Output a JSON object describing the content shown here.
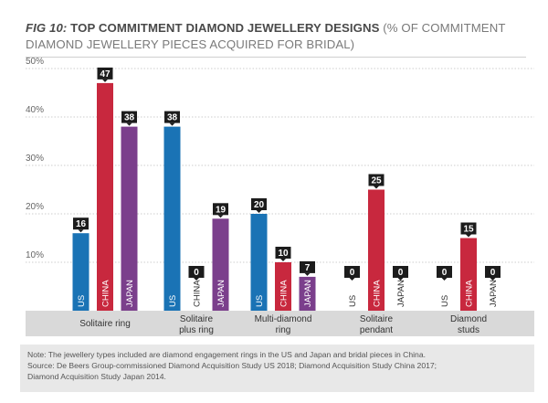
{
  "title": {
    "fig": "FIG 10:",
    "main": "TOP COMMITMENT DIAMOND JEWELLERY DESIGNS",
    "sub": "(% OF COMMITMENT DIAMOND JEWELLERY PIECES ACQUIRED FOR BRIDAL)"
  },
  "chart_data": {
    "type": "bar",
    "title": "FIG 10: TOP COMMITMENT DIAMOND JEWELLERY DESIGNS (% OF COMMITMENT DIAMOND JEWELLERY PIECES ACQUIRED FOR BRIDAL)",
    "categories": [
      [
        "Solitaire ring"
      ],
      [
        "Solitaire",
        "plus ring"
      ],
      [
        "Multi-diamond",
        "ring"
      ],
      [
        "Solitaire",
        "pendant"
      ],
      [
        "Diamond",
        "studs"
      ]
    ],
    "series": [
      {
        "name": "US",
        "color": "#1a73b5",
        "values": [
          16,
          38,
          20,
          0,
          0
        ]
      },
      {
        "name": "CHINA",
        "color": "#c8283e",
        "values": [
          47,
          0,
          10,
          25,
          15
        ]
      },
      {
        "name": "JAPAN",
        "color": "#7b3f8c",
        "values": [
          38,
          19,
          7,
          0,
          0
        ]
      }
    ],
    "ylim": [
      0,
      50
    ],
    "yticks": [
      10,
      20,
      30,
      40,
      50
    ],
    "ytick_labels": [
      "10%",
      "20%",
      "30%",
      "40%",
      "50%"
    ],
    "xlabel": "",
    "ylabel": "",
    "grid": true,
    "label_bg_color": "#1c1c1c",
    "category_band_color": "#d9d9d9"
  },
  "notes": {
    "line1": "Note: The jewellery types included are diamond engagement rings in the US and Japan and bridal pieces in China.",
    "line2": "Source: De Beers Group-commissioned Diamond Acquisition Study US 2018; Diamond Acquisition Study China 2017;",
    "line3": "Diamond Acquisition Study Japan 2014."
  },
  "colors": {
    "note_bg": "#e8e8e8",
    "grid": "#bfbfbf"
  }
}
